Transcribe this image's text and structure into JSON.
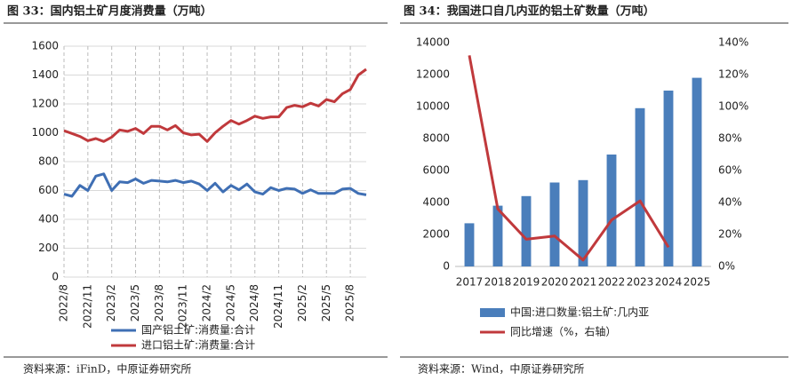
{
  "chart_data": [
    {
      "type": "line",
      "title": "图 33：国内铝土矿月度消费量（万吨）",
      "source": "资料来源：iFinD，中原证券研究所",
      "categories": [
        "2022/8",
        null,
        null,
        "2022/11",
        null,
        null,
        "2023/2",
        null,
        null,
        "2023/5",
        null,
        null,
        "2023/8",
        null,
        null,
        "2023/11",
        null,
        null,
        "2024/2",
        null,
        null,
        "2024/5",
        null,
        null,
        "2024/8",
        null,
        null,
        "2024/11",
        null,
        null,
        "2025/2",
        null,
        null,
        "2025/5",
        null,
        null,
        "2025/8",
        null,
        null
      ],
      "series": [
        {
          "name": "国产铝土矿:消费量:合计",
          "color": "#3f6fb4",
          "values": [
            575,
            560,
            635,
            600,
            700,
            715,
            600,
            660,
            655,
            680,
            650,
            670,
            665,
            660,
            670,
            655,
            665,
            645,
            600,
            650,
            590,
            635,
            605,
            645,
            590,
            575,
            620,
            600,
            615,
            610,
            580,
            605,
            580,
            580,
            580,
            610,
            615,
            580,
            570
          ]
        },
        {
          "name": "进口铝土矿:消费量:合计",
          "color": "#c0393c",
          "values": [
            1015,
            995,
            975,
            945,
            960,
            940,
            970,
            1020,
            1010,
            1030,
            995,
            1045,
            1045,
            1020,
            1050,
            1000,
            985,
            990,
            940,
            1000,
            1045,
            1085,
            1060,
            1085,
            1115,
            1100,
            1110,
            1110,
            1175,
            1190,
            1180,
            1205,
            1185,
            1230,
            1215,
            1270,
            1300,
            1400,
            1440
          ]
        }
      ],
      "ylim": [
        0,
        1600
      ],
      "yticks": [
        0,
        200,
        400,
        600,
        800,
        1000,
        1200,
        1400,
        1600
      ],
      "grid": true
    },
    {
      "type": "bar",
      "title": "图 34：我国进口自几内亚的铝土矿数量（万吨）",
      "source": "资料来源：Wind，中原证券研究所",
      "categories": [
        "2017",
        "2018",
        "2019",
        "2020",
        "2021",
        "2022",
        "2023",
        "2024",
        "2025"
      ],
      "series": [
        {
          "name": "中国:进口数量:铝土矿:几内亚",
          "color": "#4a7ebb",
          "values": [
            2700,
            3800,
            4400,
            5250,
            5400,
            7000,
            9900,
            11000,
            11800
          ]
        },
        {
          "name": "同比增速（%，右轴）",
          "type": "line",
          "axis": "y2",
          "color": "#c0393c",
          "values": [
            132,
            36,
            17,
            19,
            4,
            29,
            41,
            12,
            null
          ]
        }
      ],
      "ylim": [
        0,
        14000
      ],
      "yticks": [
        0,
        2000,
        4000,
        6000,
        8000,
        10000,
        12000,
        14000
      ],
      "y2lim": [
        0,
        140
      ],
      "y2ticks": [
        {
          "value": 0,
          "label": "0%"
        },
        {
          "value": 20,
          "label": "20%"
        },
        {
          "value": 40,
          "label": "40%"
        },
        {
          "value": 60,
          "label": "60%"
        },
        {
          "value": 80,
          "label": "80%"
        },
        {
          "value": 100,
          "label": "100%"
        },
        {
          "value": 120,
          "label": "120%"
        },
        {
          "value": 140,
          "label": "140%"
        }
      ]
    }
  ]
}
